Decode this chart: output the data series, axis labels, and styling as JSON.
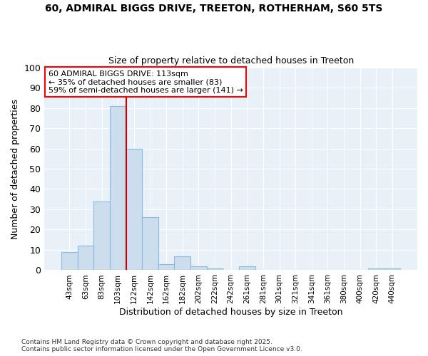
{
  "title1": "60, ADMIRAL BIGGS DRIVE, TREETON, ROTHERHAM, S60 5TS",
  "title2": "Size of property relative to detached houses in Treeton",
  "xlabel": "Distribution of detached houses by size in Treeton",
  "ylabel": "Number of detached properties",
  "bar_labels": [
    "43sqm",
    "63sqm",
    "83sqm",
    "103sqm",
    "122sqm",
    "142sqm",
    "162sqm",
    "182sqm",
    "202sqm",
    "222sqm",
    "242sqm",
    "261sqm",
    "281sqm",
    "301sqm",
    "321sqm",
    "341sqm",
    "361sqm",
    "380sqm",
    "400sqm",
    "420sqm",
    "440sqm"
  ],
  "bar_values": [
    9,
    12,
    34,
    81,
    60,
    26,
    3,
    7,
    2,
    1,
    0,
    2,
    0,
    0,
    0,
    0,
    0,
    0,
    0,
    1,
    1
  ],
  "bar_color": "#ccdded",
  "bar_edgecolor": "#88bbdd",
  "vline_color": "#cc0000",
  "annotation_title": "60 ADMIRAL BIGGS DRIVE: 113sqm",
  "annotation_line1": "← 35% of detached houses are smaller (83)",
  "annotation_line2": "59% of semi-detached houses are larger (141) →",
  "ylim": [
    0,
    100
  ],
  "yticks": [
    0,
    10,
    20,
    30,
    40,
    50,
    60,
    70,
    80,
    90,
    100
  ],
  "footnote1": "Contains HM Land Registry data © Crown copyright and database right 2025.",
  "footnote2": "Contains public sector information licensed under the Open Government Licence v3.0.",
  "bg_color": "#ffffff",
  "plot_bg_color": "#e8f0f8"
}
